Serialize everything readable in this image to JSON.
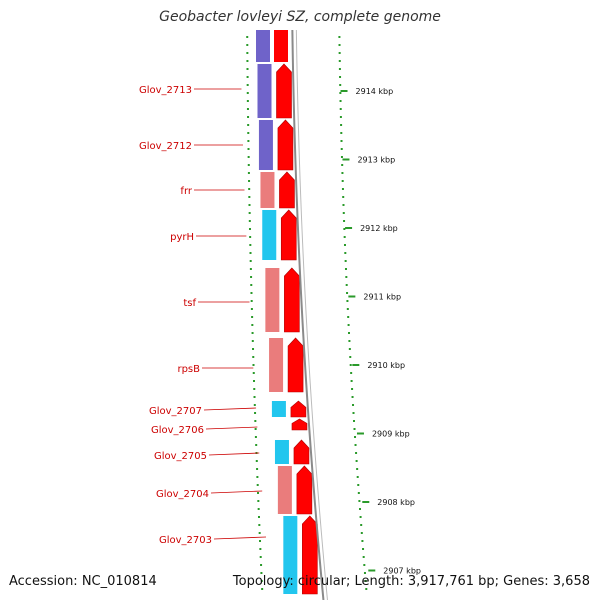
{
  "title": "Geobacter lovleyi SZ, complete genome",
  "footer": {
    "accession": "Accession: NC_010814",
    "summary": "Topology: circular; Length: 3,917,761 bp; Genes: 3,658"
  },
  "colors": {
    "cds_forward": "#ff0000",
    "cog_purple": "#6f63c9",
    "cog_pink": "#ea7c7c",
    "cog_cyan": "#22c6ee",
    "backbone": "#8a8a8a",
    "gc_dots": "#2a9a2a",
    "label_text": "#cc0000"
  },
  "genes": [
    {
      "name": "Glov_2713",
      "cog": "purple"
    },
    {
      "name": "Glov_2712",
      "cog": "purple"
    },
    {
      "name": "frr",
      "cog": "pink"
    },
    {
      "name": "pyrH",
      "cog": "cyan"
    },
    {
      "name": "tsf",
      "cog": "pink"
    },
    {
      "name": "rpsB",
      "cog": "pink"
    },
    {
      "name": "Glov_2707",
      "cog": "cyan"
    },
    {
      "name": "Glov_2706",
      "cog": "none"
    },
    {
      "name": "Glov_2705",
      "cog": "cyan"
    },
    {
      "name": "Glov_2704",
      "cog": "pink"
    },
    {
      "name": "Glov_2703",
      "cog": "cyan"
    }
  ],
  "ticks": [
    "2914 kbp",
    "2913 kbp",
    "2912 kbp",
    "2911 kbp",
    "2910 kbp",
    "2909 kbp",
    "2908 kbp",
    "2907 kbp"
  ]
}
